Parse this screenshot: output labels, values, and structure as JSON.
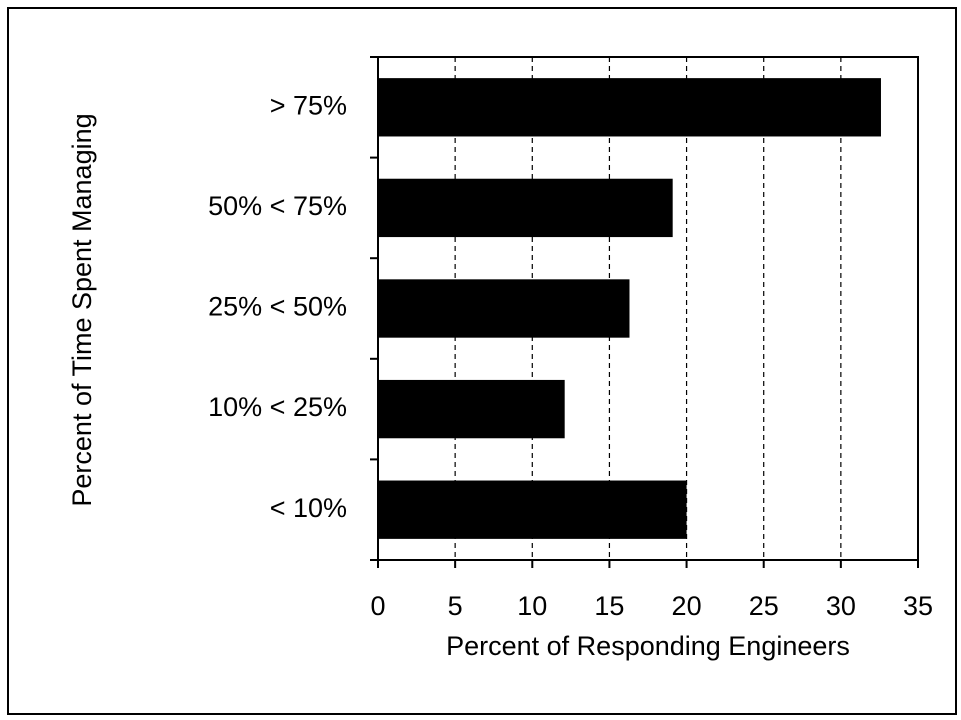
{
  "chart_data": {
    "type": "barh",
    "categories": [
      "> 75%",
      "50% < 75%",
      "25% < 50%",
      "10% < 25%",
      "< 10%"
    ],
    "values": [
      32.6,
      19.1,
      16.3,
      12.1,
      20.0
    ],
    "color": "#000000",
    "xlabel": "Percent of Responding Engineers",
    "ylabel": "Percent of Time Spent Managing",
    "xlim": [
      0,
      35
    ],
    "xticks": [
      0,
      5,
      10,
      15,
      20,
      25,
      30,
      35
    ],
    "grid": true
  }
}
